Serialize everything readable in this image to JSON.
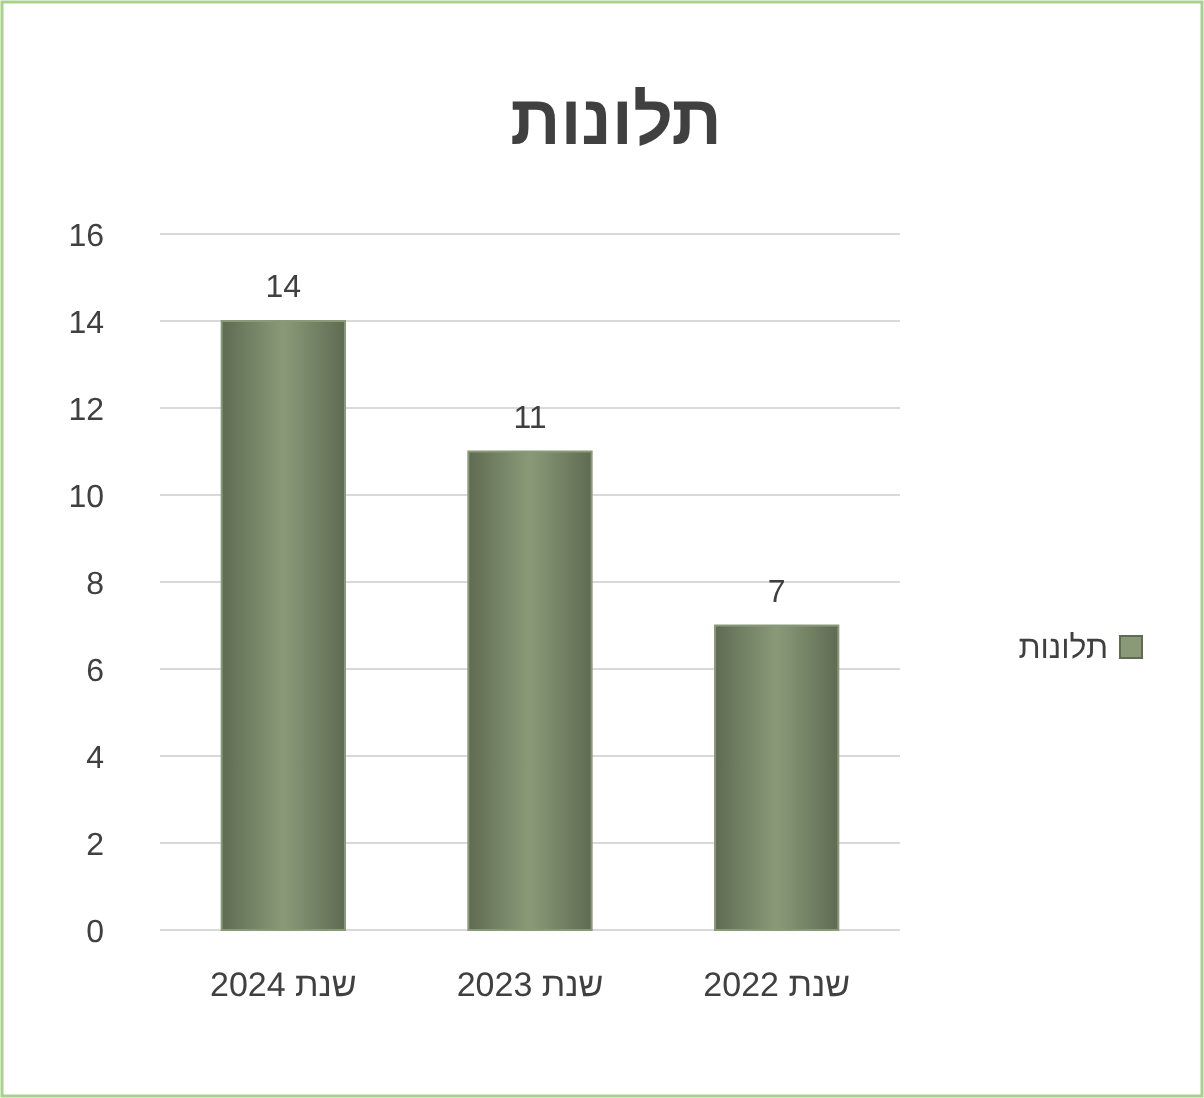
{
  "chart_data": {
    "type": "bar",
    "title": "תלונות",
    "categories": [
      "שנת 2024",
      "שנת 2023",
      "שנת 2022"
    ],
    "series": [
      {
        "name": "תלונות",
        "color": "#8a9a78",
        "values": [
          14,
          11,
          7
        ]
      }
    ],
    "ylim": [
      0,
      16
    ],
    "yticks": [
      0,
      2,
      4,
      6,
      8,
      10,
      12,
      14,
      16
    ],
    "grid": "y",
    "legend": "right",
    "data_labels": true
  }
}
